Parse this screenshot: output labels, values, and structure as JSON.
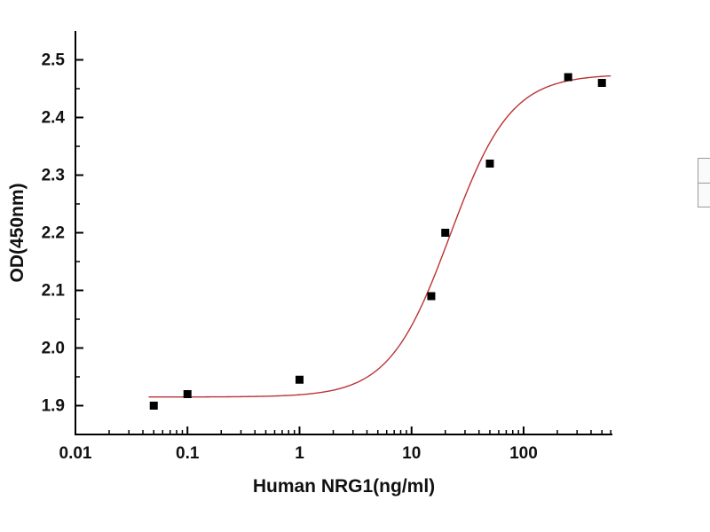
{
  "figure": {
    "background": "#ffffff",
    "axis_color": "#000000",
    "text_color": "#111111"
  },
  "chart_data": {
    "type": "scatter",
    "title": "",
    "xlabel": "Human NRG1(ng/ml)",
    "ylabel": "OD(450nm)",
    "x_scale": "log",
    "xlim": [
      0.01,
      620
    ],
    "ylim": [
      1.85,
      2.55
    ],
    "x_ticks": [
      0.01,
      0.1,
      1,
      10,
      100
    ],
    "x_tick_labels": [
      "0.01",
      "0.1",
      "1",
      "10",
      "100"
    ],
    "y_ticks": [
      1.9,
      2.0,
      2.1,
      2.2,
      2.3,
      2.4,
      2.5
    ],
    "y_tick_labels": [
      "1.9",
      "2.0",
      "2.1",
      "2.2",
      "2.3",
      "2.4",
      "2.5"
    ],
    "grid": false,
    "legend_position": "none (empty cropped box at right image edge)",
    "points": {
      "marker": "filled-square",
      "color": "#000000",
      "x": [
        0.05,
        0.1,
        1,
        15,
        20,
        50,
        250,
        500
      ],
      "y": [
        1.9,
        1.92,
        1.945,
        2.09,
        2.2,
        2.32,
        2.47,
        2.46
      ]
    },
    "fit_curve": {
      "model": "4PL sigmoid",
      "bottom": 1.915,
      "top": 2.475,
      "ec50": 22,
      "hill": 1.6,
      "color": "#bb3333",
      "x_start": 0.045,
      "x_end": 600
    }
  }
}
